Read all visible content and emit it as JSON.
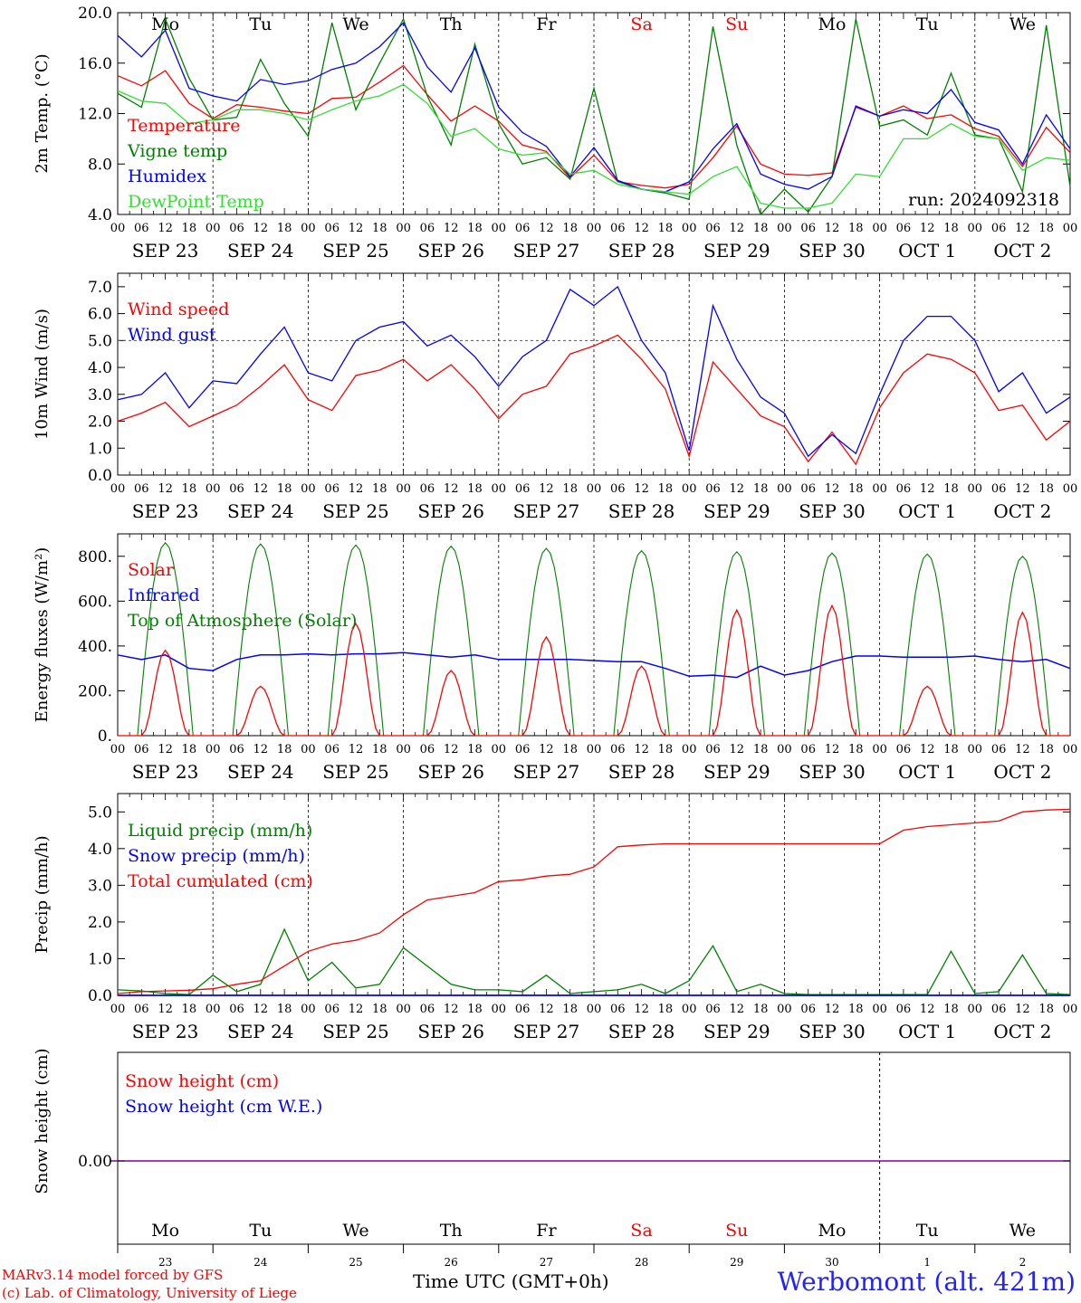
{
  "footer": {
    "credit_line1": "MARv3.14 model forced by GFS",
    "credit_line2": "(c) Lab. of Climatology, University of Liege",
    "time_label": "Time UTC (GMT+0h)",
    "station": "Werbomont (alt. 421m)"
  },
  "colors": {
    "red": "#ff0000",
    "blue": "#0000ff",
    "green": "#008000",
    "lightgreen": "#33dd33",
    "purple": "#8000a0",
    "grid": "#000000"
  },
  "chart_data": [
    {
      "type": "line",
      "ylabel": "2m Temp. (°C)",
      "ylim": [
        4,
        20
      ],
      "yticks": [
        "4.0",
        "8.0",
        "12.0",
        "16.0",
        "20.0"
      ],
      "run_label": "run: 2024092318",
      "hour_ticks": [
        "00",
        "06",
        "12",
        "18"
      ],
      "day_labels": [
        "SEP 23",
        "SEP 24",
        "SEP 25",
        "SEP 26",
        "SEP 27",
        "SEP 28",
        "SEP 29",
        "SEP 30",
        "OCT  1",
        "OCT  2"
      ],
      "weekday_labels": [
        {
          "text": "Mo",
          "color": "#000000"
        },
        {
          "text": "Tu",
          "color": "#000000"
        },
        {
          "text": "We",
          "color": "#000000"
        },
        {
          "text": "Th",
          "color": "#000000"
        },
        {
          "text": "Fr",
          "color": "#000000"
        },
        {
          "text": "Sa",
          "color": "#ff0000"
        },
        {
          "text": "Su",
          "color": "#ff0000"
        },
        {
          "text": "Mo",
          "color": "#000000"
        },
        {
          "text": "Tu",
          "color": "#000000"
        },
        {
          "text": "We",
          "color": "#000000"
        }
      ],
      "x_hours": [
        0,
        6,
        12,
        18,
        24,
        30,
        36,
        42,
        48,
        54,
        60,
        66,
        72,
        78,
        84,
        90,
        96,
        102,
        108,
        114,
        120,
        126,
        132,
        138,
        144,
        150,
        156,
        162,
        168,
        174,
        180,
        186,
        192,
        198,
        204,
        210,
        216,
        222,
        228,
        234,
        240
      ],
      "series": [
        {
          "name": "Temperature",
          "color": "#ff0000",
          "values": [
            15.0,
            14.2,
            15.4,
            12.8,
            11.6,
            12.7,
            12.5,
            12.2,
            12.0,
            13.2,
            13.3,
            14.5,
            15.8,
            13.5,
            11.4,
            12.6,
            11.4,
            9.5,
            9.0,
            6.9,
            8.7,
            6.6,
            6.3,
            6.1,
            6.4,
            8.5,
            11.0,
            8.0,
            7.2,
            7.1,
            7.3,
            12.5,
            11.8,
            12.6,
            11.6,
            11.9,
            10.8,
            10.2,
            7.8,
            10.9,
            8.9
          ]
        },
        {
          "name": "Vigne temp",
          "color": "#008000",
          "values": [
            13.6,
            12.5,
            19.5,
            14.8,
            11.5,
            11.7,
            16.3,
            12.8,
            10.2,
            19.2,
            12.3,
            16.0,
            19.5,
            13.4,
            9.5,
            17.5,
            11.2,
            8.0,
            8.5,
            6.8,
            14.0,
            6.6,
            6.0,
            5.7,
            5.2,
            18.9,
            9.5,
            4.0,
            6.0,
            4.2,
            7.0,
            19.5,
            11.0,
            11.5,
            10.3,
            15.2,
            10.3,
            10.0,
            5.8,
            19.0,
            6.2
          ]
        },
        {
          "name": "Humidex",
          "color": "#0000ff",
          "values": [
            18.2,
            16.5,
            18.6,
            14.0,
            13.4,
            13.0,
            14.7,
            14.3,
            14.6,
            15.5,
            16.0,
            17.3,
            19.2,
            15.7,
            13.7,
            17.2,
            12.5,
            10.5,
            9.4,
            7.0,
            9.3,
            6.7,
            6.0,
            5.8,
            6.6,
            9.2,
            11.2,
            7.2,
            6.4,
            6.0,
            7.0,
            12.6,
            11.8,
            12.3,
            12.0,
            13.9,
            11.3,
            10.7,
            8.0,
            11.9,
            9.2
          ]
        },
        {
          "name": "DewPoint Temp",
          "color": "#33dd33",
          "values": [
            13.8,
            13.0,
            12.8,
            11.2,
            11.5,
            12.3,
            12.3,
            12.0,
            11.5,
            12.3,
            13.0,
            13.4,
            14.3,
            12.8,
            10.2,
            10.8,
            9.2,
            8.7,
            8.9,
            7.2,
            7.5,
            6.4,
            6.0,
            5.8,
            5.6,
            7.0,
            7.8,
            4.9,
            4.5,
            4.5,
            4.9,
            7.2,
            7.0,
            10.0,
            10.0,
            11.2,
            10.2,
            10.0,
            7.5,
            8.5,
            8.3
          ]
        }
      ]
    },
    {
      "type": "line",
      "ylabel": "10m Wind (m/s)",
      "ylim": [
        0,
        7.5
      ],
      "yticks": [
        "0.0",
        "1.0",
        "2.0",
        "3.0",
        "4.0",
        "5.0",
        "6.0",
        "7.0"
      ],
      "reference_line": 5.0,
      "hour_ticks": [
        "00",
        "06",
        "12",
        "18"
      ],
      "day_labels": [
        "SEP 23",
        "SEP 24",
        "SEP 25",
        "SEP 26",
        "SEP 27",
        "SEP 28",
        "SEP 29",
        "SEP 30",
        "OCT  1",
        "OCT  2"
      ],
      "x_hours": [
        0,
        6,
        12,
        18,
        24,
        30,
        36,
        42,
        48,
        54,
        60,
        66,
        72,
        78,
        84,
        90,
        96,
        102,
        108,
        114,
        120,
        126,
        132,
        138,
        144,
        150,
        156,
        162,
        168,
        174,
        180,
        186,
        192,
        198,
        204,
        210,
        216,
        222,
        228,
        234,
        240
      ],
      "series": [
        {
          "name": "Wind speed",
          "color": "#ff0000",
          "values": [
            2.0,
            2.3,
            2.7,
            1.8,
            2.2,
            2.6,
            3.3,
            4.1,
            2.8,
            2.4,
            3.7,
            3.9,
            4.3,
            3.5,
            4.1,
            3.2,
            2.1,
            3.0,
            3.3,
            4.5,
            4.8,
            5.2,
            4.3,
            3.2,
            0.7,
            4.2,
            3.2,
            2.2,
            1.8,
            0.5,
            1.6,
            0.4,
            2.5,
            3.8,
            4.5,
            4.3,
            3.8,
            2.4,
            2.6,
            1.3,
            2.0
          ]
        },
        {
          "name": "Wind gust",
          "color": "#0000ff",
          "values": [
            2.8,
            3.0,
            3.8,
            2.5,
            3.5,
            3.4,
            4.5,
            5.5,
            3.8,
            3.5,
            5.0,
            5.5,
            5.7,
            4.8,
            5.2,
            4.4,
            3.3,
            4.4,
            5.0,
            6.9,
            6.3,
            7.0,
            5.0,
            3.8,
            0.9,
            6.3,
            4.3,
            2.9,
            2.3,
            0.7,
            1.5,
            0.8,
            3.0,
            5.0,
            5.9,
            5.9,
            5.0,
            3.1,
            3.8,
            2.3,
            2.9
          ]
        }
      ]
    },
    {
      "type": "line",
      "ylabel": "Energy fluxes (W/m²)",
      "ylim": [
        0,
        900
      ],
      "yticks": [
        "0.",
        "200.",
        "400.",
        "600.",
        "800."
      ],
      "hour_ticks": [
        "00",
        "06",
        "12",
        "18"
      ],
      "day_labels": [
        "SEP 23",
        "SEP 24",
        "SEP 25",
        "SEP 26",
        "SEP 27",
        "SEP 28",
        "SEP 29",
        "SEP 30",
        "OCT  1",
        "OCT  2"
      ],
      "toa_daily_peak": [
        860,
        855,
        850,
        845,
        835,
        825,
        820,
        815,
        810,
        800
      ],
      "solar_daily_peak": [
        380,
        220,
        500,
        290,
        440,
        310,
        560,
        580,
        220,
        550
      ],
      "x_hours": [
        0,
        6,
        12,
        18,
        24,
        30,
        36,
        42,
        48,
        54,
        60,
        66,
        72,
        78,
        84,
        90,
        96,
        102,
        108,
        114,
        120,
        126,
        132,
        138,
        144,
        150,
        156,
        162,
        168,
        174,
        180,
        186,
        192,
        198,
        204,
        210,
        216,
        222,
        228,
        234,
        240
      ],
      "series": [
        {
          "name": "Solar",
          "color": "#ff0000",
          "kind": "daily_peaks"
        },
        {
          "name": "Infrared",
          "color": "#0000ff",
          "values": [
            360,
            340,
            360,
            300,
            290,
            340,
            360,
            360,
            365,
            360,
            365,
            365,
            370,
            360,
            350,
            360,
            340,
            340,
            340,
            340,
            335,
            330,
            330,
            300,
            265,
            270,
            260,
            310,
            270,
            290,
            330,
            355,
            355,
            350,
            350,
            350,
            355,
            340,
            330,
            340,
            300
          ]
        },
        {
          "name": "Top of Atmosphere (Solar)",
          "color": "#008000",
          "kind": "daily_peaks"
        }
      ]
    },
    {
      "type": "line",
      "ylabel": "Precip (mm/h)",
      "ylim": [
        0,
        5.5
      ],
      "yticks": [
        "0.0",
        "1.0",
        "2.0",
        "3.0",
        "4.0",
        "5.0"
      ],
      "hour_ticks": [
        "00",
        "06",
        "12",
        "18"
      ],
      "day_labels": [
        "SEP 23",
        "SEP 24",
        "SEP 25",
        "SEP 26",
        "SEP 27",
        "SEP 28",
        "SEP 29",
        "SEP 30",
        "OCT  1",
        "OCT  2"
      ],
      "x_hours": [
        0,
        6,
        12,
        18,
        24,
        30,
        36,
        42,
        48,
        54,
        60,
        66,
        72,
        78,
        84,
        90,
        96,
        102,
        108,
        114,
        120,
        126,
        132,
        138,
        144,
        150,
        156,
        162,
        168,
        174,
        180,
        186,
        192,
        198,
        204,
        210,
        216,
        222,
        228,
        234,
        240
      ],
      "series": [
        {
          "name": "Liquid precip (mm/h)",
          "color": "#008000",
          "values": [
            0.15,
            0.12,
            0.05,
            0.02,
            0.55,
            0.1,
            0.3,
            1.8,
            0.4,
            0.9,
            0.2,
            0.3,
            1.3,
            0.8,
            0.3,
            0.15,
            0.15,
            0.1,
            0.55,
            0.05,
            0.1,
            0.15,
            0.3,
            0.05,
            0.4,
            1.35,
            0.1,
            0.3,
            0.05,
            0.02,
            0.02,
            0.02,
            0.02,
            0.02,
            0.02,
            1.2,
            0.05,
            0.1,
            1.1,
            0.05,
            0.02
          ]
        },
        {
          "name": "Snow precip (mm/h)",
          "color": "#0000ff",
          "values": [
            0,
            0,
            0,
            0,
            0,
            0,
            0,
            0,
            0,
            0,
            0,
            0,
            0,
            0,
            0,
            0,
            0,
            0,
            0,
            0,
            0,
            0,
            0,
            0,
            0,
            0,
            0,
            0,
            0,
            0,
            0,
            0,
            0,
            0,
            0,
            0,
            0,
            0,
            0,
            0,
            0
          ]
        },
        {
          "name": "Total cumulated (cm)",
          "color": "#ff0000",
          "values": [
            0.05,
            0.1,
            0.12,
            0.14,
            0.18,
            0.3,
            0.4,
            0.8,
            1.2,
            1.4,
            1.5,
            1.7,
            2.2,
            2.6,
            2.7,
            2.8,
            3.1,
            3.15,
            3.25,
            3.3,
            3.5,
            4.05,
            4.1,
            4.13,
            4.13,
            4.13,
            4.13,
            4.13,
            4.13,
            4.13,
            4.13,
            4.13,
            4.13,
            4.5,
            4.6,
            4.65,
            4.7,
            4.75,
            5.0,
            5.05,
            5.07
          ]
        }
      ]
    },
    {
      "type": "line",
      "ylabel": "Snow height (cm)",
      "yticks": [
        "0.00"
      ],
      "weekday_labels": [
        {
          "text": "Mo",
          "color": "#000000"
        },
        {
          "text": "Tu",
          "color": "#000000"
        },
        {
          "text": "We",
          "color": "#000000"
        },
        {
          "text": "Th",
          "color": "#000000"
        },
        {
          "text": "Fr",
          "color": "#000000"
        },
        {
          "text": "Sa",
          "color": "#ff0000"
        },
        {
          "text": "Su",
          "color": "#ff0000"
        },
        {
          "text": "Mo",
          "color": "#000000"
        },
        {
          "text": "Tu",
          "color": "#000000"
        },
        {
          "text": "We",
          "color": "#000000"
        }
      ],
      "day_numbers": [
        "23",
        "24",
        "25",
        "26",
        "27",
        "28",
        "29",
        "30",
        "1",
        "2"
      ],
      "series": [
        {
          "name": "Snow height (cm)",
          "color": "#ff0000",
          "constant": 0.0
        },
        {
          "name": "Snow height (cm W.E.)",
          "color": "#0000ff",
          "constant": 0.0
        }
      ]
    }
  ]
}
